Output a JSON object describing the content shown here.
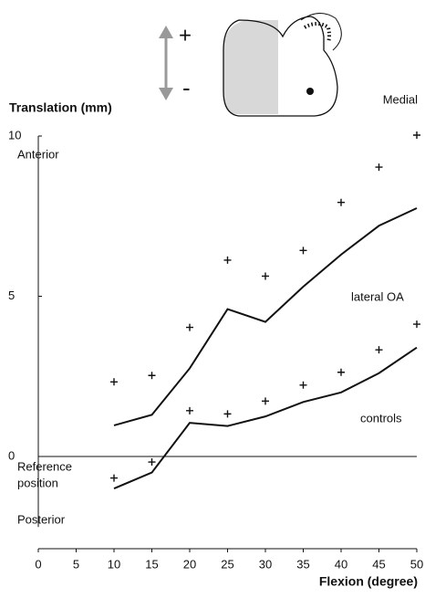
{
  "chart_data": {
    "type": "line",
    "y_label": "Translation (mm)",
    "x_label": "Flexion (degree)",
    "annotations": {
      "anterior": "Anterior",
      "posterior": "Posterior",
      "reference": [
        "Reference",
        "position"
      ],
      "medial": "Medial",
      "plus": "+",
      "minus": "-"
    },
    "x": [
      10,
      15,
      20,
      25,
      30,
      35,
      40,
      45,
      50
    ],
    "series": [
      {
        "name": "lateral OA",
        "color": "#111111",
        "values": [
          0.97,
          1.3,
          2.75,
          4.6,
          4.2,
          5.3,
          6.3,
          7.2,
          7.75
        ],
        "points": [
          2.3,
          2.5,
          4.0,
          6.1,
          5.6,
          6.4,
          7.9,
          9.0,
          10.0
        ]
      },
      {
        "name": "controls",
        "color": "#111111",
        "values": [
          -1.0,
          -0.5,
          1.05,
          0.95,
          1.25,
          1.7,
          2.0,
          2.6,
          3.4
        ],
        "points": [
          -0.7,
          -0.2,
          1.4,
          1.3,
          1.7,
          2.2,
          2.6,
          3.3,
          4.1
        ]
      }
    ],
    "xlim": [
      0,
      50
    ],
    "xticks": [
      0,
      5,
      10,
      15,
      20,
      25,
      30,
      35,
      40,
      45,
      50
    ],
    "ylim": [
      -2.2,
      10
    ],
    "yticks": [
      0,
      5,
      10
    ]
  }
}
